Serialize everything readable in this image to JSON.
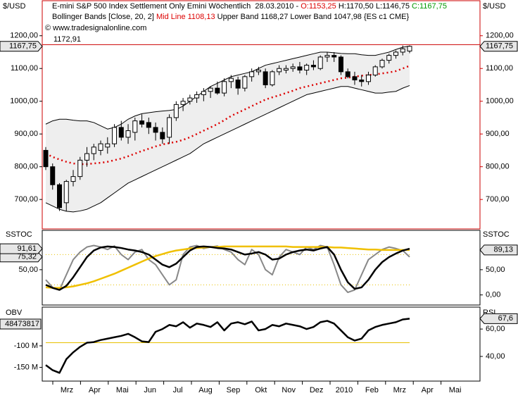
{
  "chart_data": [
    {
      "type": "candlestick",
      "unit_label": "$/USD",
      "header": [
        [
          {
            "text": "E-mini S&P 500 Index Settlement Only Emini Wöchentlich  28.03.2010 - ",
            "color": "#000000"
          },
          {
            "text": "O:1153,25",
            "color": "#dd0000"
          },
          {
            "text": " H:1170,50 L:1146,75 ",
            "color": "#000000"
          },
          {
            "text": "C:1167,75",
            "color": "#009900"
          }
        ],
        [
          {
            "text": "Bollinger Bands [Close, 20, 2] ",
            "color": "#000000"
          },
          {
            "text": "Mid Line 1108,13",
            "color": "#dd0000"
          },
          {
            "text": " Upper Band 1168,27 Lower Band 1047,98 {ES c1 CME}",
            "color": "#000000"
          }
        ],
        [
          {
            "text": "© www.tradesignalonline.com",
            "color": "#000000"
          }
        ]
      ],
      "ylim": [
        610,
        1307
      ],
      "yticks": [
        {
          "value": 700,
          "label": "700,00"
        },
        {
          "value": 800,
          "label": "800,00"
        },
        {
          "value": 900,
          "label": "900,00"
        },
        {
          "value": 1000,
          "label": "1000,00"
        },
        {
          "value": 1100,
          "label": "1100,00"
        },
        {
          "value": 1200,
          "label": "1200,00"
        }
      ],
      "last": {
        "value": 1167.75,
        "label": "1167,75"
      },
      "high_line": {
        "value": 1172.91,
        "label": "1172,91",
        "color": "#cc0000"
      },
      "open": [
        850,
        800,
        745,
        690,
        755,
        770,
        820,
        840,
        850,
        860,
        870,
        920,
        890,
        905,
        940,
        935,
        920,
        905,
        890,
        950,
        990,
        1000,
        1010,
        1020,
        1030,
        1040,
        1025,
        1060,
        1065,
        1040,
        1075,
        1090,
        1090,
        1050,
        1090,
        1095,
        1100,
        1105,
        1095,
        1110,
        1100,
        1135,
        1140,
        1135,
        1090,
        1075,
        1065,
        1060,
        1080,
        1105,
        1125,
        1140,
        1150,
        1153.25
      ],
      "high": [
        860,
        810,
        750,
        760,
        790,
        830,
        860,
        870,
        880,
        890,
        930,
        940,
        930,
        950,
        960,
        950,
        935,
        920,
        960,
        1000,
        1010,
        1020,
        1030,
        1040,
        1045,
        1060,
        1070,
        1080,
        1075,
        1080,
        1100,
        1105,
        1100,
        1095,
        1110,
        1110,
        1115,
        1120,
        1115,
        1125,
        1140,
        1150,
        1150,
        1140,
        1100,
        1090,
        1080,
        1090,
        1110,
        1130,
        1145,
        1155,
        1170,
        1170.5
      ],
      "low": [
        790,
        730,
        665,
        665,
        740,
        760,
        800,
        820,
        835,
        840,
        860,
        880,
        870,
        880,
        920,
        900,
        880,
        870,
        870,
        940,
        970,
        990,
        995,
        1000,
        1010,
        1020,
        1015,
        1040,
        1020,
        1030,
        1060,
        1080,
        1040,
        1045,
        1080,
        1085,
        1090,
        1085,
        1080,
        1095,
        1095,
        1120,
        1120,
        1080,
        1070,
        1050,
        1045,
        1050,
        1075,
        1100,
        1115,
        1130,
        1140,
        1146.75
      ],
      "close": [
        800,
        745,
        675,
        755,
        770,
        820,
        840,
        860,
        870,
        870,
        920,
        890,
        910,
        940,
        930,
        920,
        905,
        885,
        950,
        990,
        1000,
        1010,
        1020,
        1030,
        1040,
        1025,
        1060,
        1070,
        1040,
        1075,
        1090,
        1095,
        1050,
        1090,
        1100,
        1100,
        1105,
        1095,
        1110,
        1105,
        1135,
        1140,
        1135,
        1090,
        1075,
        1065,
        1060,
        1080,
        1105,
        1125,
        1140,
        1150,
        1160,
        1167.75
      ],
      "band_fill": {
        "color": "#eeeeee",
        "between": [
          0,
          2
        ]
      },
      "series": [
        {
          "color": "#000000",
          "style": "solid",
          "values": [
            930,
            940,
            945,
            945,
            942,
            940,
            940,
            935,
            925,
            915,
            920,
            930,
            945,
            955,
            962,
            965,
            968,
            970,
            972,
            975,
            985,
            1000,
            1015,
            1030,
            1045,
            1055,
            1065,
            1075,
            1080,
            1085,
            1090,
            1100,
            1110,
            1115,
            1120,
            1125,
            1130,
            1135,
            1140,
            1145,
            1150,
            1150,
            1148,
            1146,
            1145,
            1145,
            1142,
            1140,
            1140,
            1145,
            1150,
            1158,
            1165,
            1168.27
          ]
        },
        {
          "color": "#dd0000",
          "style": "dotted",
          "values": [
            840,
            830,
            822,
            815,
            810,
            808,
            808,
            810,
            812,
            815,
            820,
            825,
            832,
            840,
            848,
            855,
            862,
            868,
            872,
            876,
            882,
            890,
            900,
            910,
            920,
            930,
            942,
            955,
            965,
            975,
            985,
            995,
            1005,
            1012,
            1018,
            1025,
            1032,
            1040,
            1045,
            1050,
            1055,
            1060,
            1065,
            1070,
            1072,
            1075,
            1078,
            1080,
            1082,
            1085,
            1088,
            1092,
            1100,
            1108.13
          ]
        },
        {
          "color": "#000000",
          "style": "solid",
          "values": [
            690,
            680,
            670,
            664,
            662,
            665,
            670,
            680,
            690,
            705,
            720,
            735,
            750,
            760,
            770,
            780,
            790,
            800,
            810,
            820,
            830,
            840,
            855,
            870,
            880,
            890,
            900,
            910,
            920,
            930,
            940,
            950,
            960,
            970,
            980,
            990,
            1000,
            1010,
            1020,
            1025,
            1030,
            1035,
            1040,
            1045,
            1045,
            1040,
            1035,
            1030,
            1025,
            1025,
            1028,
            1030,
            1040,
            1047.98
          ]
        }
      ]
    },
    {
      "type": "line",
      "label": "SSTOC",
      "ylim": [
        -20,
        128
      ],
      "yticks": [
        {
          "value": 50,
          "label": "50,00"
        }
      ],
      "y2ticks": [
        {
          "value": 0,
          "label": "0,00"
        },
        {
          "value": 50,
          "label": "50,00"
        }
      ],
      "ref_lines": [
        {
          "value": 80,
          "color": "#e8c000",
          "style": "dotted"
        },
        {
          "value": 20,
          "color": "#e8c000",
          "style": "dotted"
        }
      ],
      "series": [
        {
          "color": "#888888",
          "width": 2,
          "tag": {
            "label": "75,32",
            "side": "left"
          },
          "values": [
            30,
            15,
            10,
            40,
            70,
            85,
            95,
            98,
            95,
            90,
            97,
            80,
            70,
            85,
            90,
            70,
            60,
            40,
            20,
            30,
            80,
            95,
            98,
            92,
            95,
            97,
            90,
            85,
            70,
            60,
            90,
            80,
            50,
            40,
            75,
            90,
            85,
            80,
            95,
            90,
            98,
            95,
            60,
            20,
            5,
            10,
            40,
            70,
            80,
            90,
            95,
            92,
            88,
            75.32
          ]
        },
        {
          "color": "#f0c000",
          "width": 2.5,
          "tag": {
            "label": "89,13",
            "side": "right"
          },
          "values": [
            15,
            14,
            14,
            15,
            17,
            20,
            23,
            27,
            32,
            37,
            42,
            48,
            54,
            60,
            66,
            72,
            77,
            81,
            85,
            88,
            90,
            92,
            93,
            94,
            95,
            95,
            96,
            96,
            96,
            96,
            96,
            96,
            96,
            96,
            96,
            96,
            95,
            95,
            95,
            95,
            95,
            95,
            94,
            94,
            93,
            92,
            91,
            90,
            90,
            89,
            89,
            89,
            89,
            89.13
          ]
        },
        {
          "color": "#000000",
          "width": 2.5,
          "tag": {
            "label": "91,61",
            "side": "left"
          },
          "values": [
            20,
            14,
            10,
            18,
            35,
            55,
            75,
            88,
            94,
            96,
            95,
            93,
            90,
            88,
            85,
            80,
            70,
            60,
            55,
            62,
            75,
            88,
            95,
            96,
            95,
            93,
            92,
            90,
            85,
            80,
            82,
            85,
            80,
            70,
            72,
            80,
            85,
            88,
            90,
            88,
            92,
            95,
            80,
            50,
            25,
            12,
            15,
            30,
            50,
            65,
            75,
            82,
            88,
            91.61
          ]
        }
      ]
    },
    {
      "type": "line",
      "label": "OBV",
      "label2": "RSI",
      "left_tag": "48473817",
      "ylim": [
        -182,
        -10
      ],
      "yticks": [
        {
          "value": -100,
          "label": "-100 M"
        },
        {
          "value": -150,
          "label": "-150 M"
        }
      ],
      "y2lim": [
        22,
        76
      ],
      "y2ticks": [
        {
          "value": 60,
          "label": "60,00"
        },
        {
          "value": 40,
          "label": "40,00"
        }
      ],
      "ref_lines": [
        {
          "value": 50,
          "axis": "y2",
          "color": "#e8c000",
          "style": "solid"
        }
      ],
      "series": [
        {
          "color": "#000000",
          "width": 2.5,
          "axis": "y2",
          "tag": {
            "label": "67,6",
            "side": "right"
          },
          "values": [
            33.7,
            30,
            28,
            38,
            43,
            47,
            50,
            50.5,
            52,
            53,
            54,
            55,
            56.5,
            54,
            51,
            50.5,
            58,
            60,
            63,
            62,
            65,
            61,
            64,
            63,
            61.5,
            65,
            59,
            64,
            65,
            63.5,
            65.5,
            59,
            60,
            63,
            62,
            64,
            63,
            62,
            60,
            61.5,
            65,
            66,
            64,
            59,
            54,
            51.6,
            53,
            59,
            61.5,
            63,
            64,
            65,
            67,
            67.6
          ]
        }
      ],
      "x_labels": [
        "Mrz",
        "Apr",
        "Mai",
        "Jun",
        "Jul",
        "Aug",
        "Sep",
        "Okt",
        "Nov",
        "Dez",
        "2010",
        "Feb",
        "Mrz",
        "Apr",
        "Mai"
      ]
    }
  ]
}
